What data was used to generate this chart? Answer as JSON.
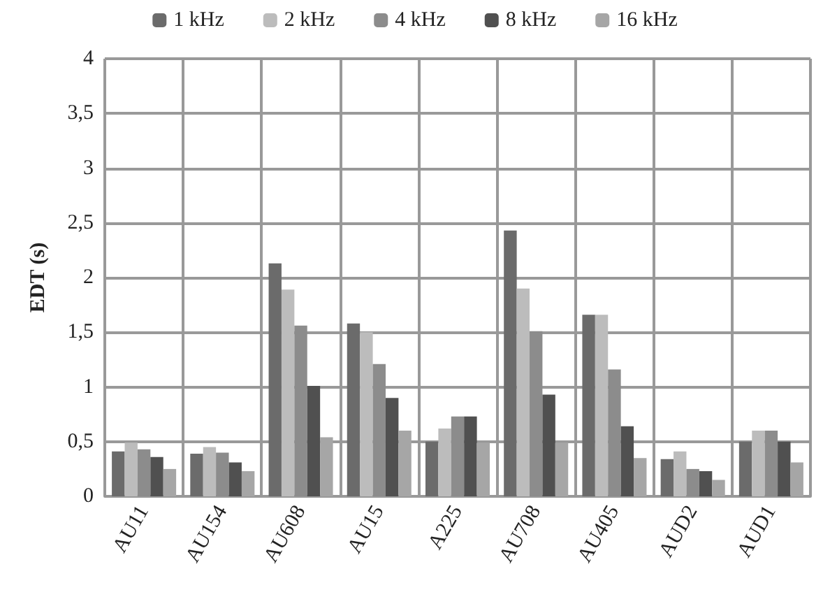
{
  "chart_data": {
    "type": "bar",
    "ylabel": "EDT (s)",
    "categories": [
      "AU11",
      "AU154",
      "AU608",
      "AU15",
      "A225",
      "AU708",
      "AU405",
      "AUD2",
      "AUD1"
    ],
    "series": [
      {
        "name": "1 kHz",
        "color": "#6b6b6b",
        "values": [
          0.41,
          0.39,
          2.13,
          1.58,
          0.5,
          2.43,
          1.66,
          0.34,
          0.5
        ]
      },
      {
        "name": "2 kHz",
        "color": "#bcbcbc",
        "values": [
          0.49,
          0.45,
          1.89,
          1.5,
          0.62,
          1.9,
          1.66,
          0.41,
          0.6
        ]
      },
      {
        "name": "4 kHz",
        "color": "#8c8c8c",
        "values": [
          0.43,
          0.4,
          1.56,
          1.21,
          0.73,
          1.51,
          1.16,
          0.25,
          0.6
        ]
      },
      {
        "name": "8 kHz",
        "color": "#505050",
        "values": [
          0.36,
          0.31,
          1.01,
          0.9,
          0.73,
          0.93,
          0.64,
          0.23,
          0.5
        ]
      },
      {
        "name": "16 kHz",
        "color": "#a6a6a6",
        "values": [
          0.25,
          0.23,
          0.54,
          0.6,
          0.49,
          0.49,
          0.35,
          0.15,
          0.31
        ]
      }
    ],
    "ylim": [
      0,
      4
    ],
    "yticks": [
      0,
      {
        "value": 0.5,
        "label": "0,5"
      },
      1,
      {
        "value": 1.5,
        "label": "1,5"
      },
      2,
      {
        "value": 2.5,
        "label": "2,5"
      },
      3,
      {
        "value": 3.5,
        "label": "3,5"
      },
      4
    ],
    "grid": true,
    "legend": "top"
  }
}
